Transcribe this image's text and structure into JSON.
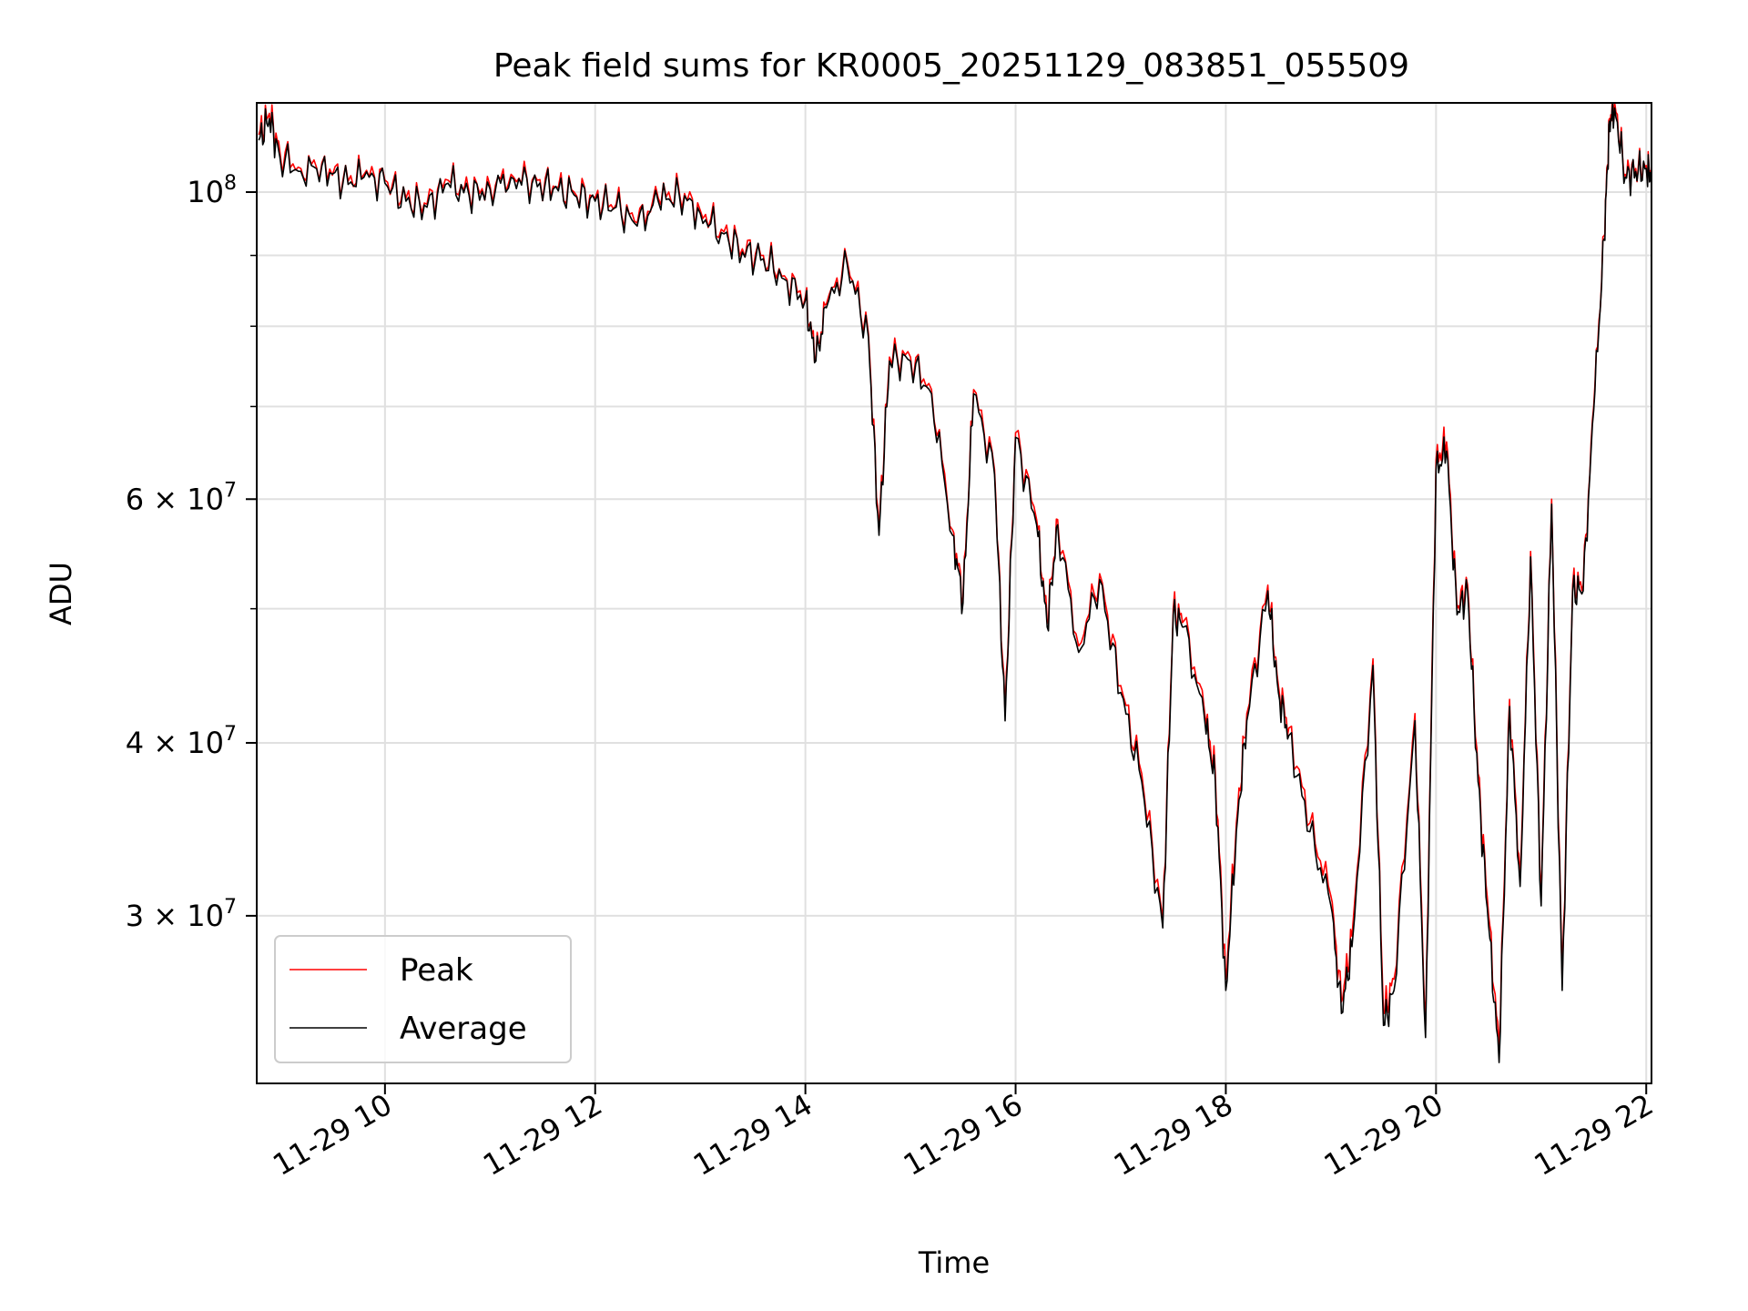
{
  "chart_data": {
    "type": "line",
    "title": "Peak field sums for KR0005_20251129_083851_055509",
    "xlabel": "Time",
    "ylabel": "ADU",
    "yscale": "log",
    "grid": true,
    "legend_position": "lower-left",
    "xlim": [
      8.78,
      22.05
    ],
    "ylim": [
      22700000.0,
      116000000.0
    ],
    "x_ticks": [
      {
        "x": 10,
        "label": "11-29 10"
      },
      {
        "x": 12,
        "label": "11-29 12"
      },
      {
        "x": 14,
        "label": "11-29 14"
      },
      {
        "x": 16,
        "label": "11-29 16"
      },
      {
        "x": 18,
        "label": "11-29 18"
      },
      {
        "x": 20,
        "label": "11-29 20"
      },
      {
        "x": 22,
        "label": "11-29 22"
      }
    ],
    "y_ticks": [
      {
        "y": 30000000,
        "base": "3",
        "exp": "7"
      },
      {
        "y": 40000000,
        "base": "4",
        "exp": "7"
      },
      {
        "y": 60000000,
        "base": "6",
        "exp": "7"
      },
      {
        "y": 100000000,
        "base": "",
        "exp": "8"
      }
    ],
    "y_minor_ticks": [
      50000000,
      70000000,
      80000000,
      90000000
    ],
    "colors": {
      "peak": "#ff0000",
      "average": "#000000",
      "grid": "#e0e0e0"
    },
    "series": [
      {
        "name": "Peak",
        "color": "#ff0000",
        "x": [
          8.8,
          8.9,
          9.0,
          9.2,
          9.4,
          9.6,
          9.8,
          10.0,
          10.2,
          10.4,
          10.6,
          10.8,
          11.0,
          11.2,
          11.4,
          11.6,
          11.8,
          12.0,
          12.2,
          12.4,
          12.6,
          12.8,
          13.0,
          13.2,
          13.4,
          13.6,
          13.8,
          14.0,
          14.1,
          14.2,
          14.4,
          14.6,
          14.7,
          14.8,
          15.0,
          15.2,
          15.4,
          15.5,
          15.6,
          15.8,
          15.9,
          16.0,
          16.2,
          16.3,
          16.4,
          16.6,
          16.8,
          17.0,
          17.2,
          17.4,
          17.5,
          17.6,
          17.8,
          17.9,
          18.0,
          18.1,
          18.2,
          18.4,
          18.5,
          18.6,
          18.8,
          19.0,
          19.1,
          19.2,
          19.4,
          19.5,
          19.6,
          19.8,
          19.9,
          20.0,
          20.1,
          20.2,
          20.3,
          20.4,
          20.5,
          20.6,
          20.7,
          20.8,
          20.9,
          21.0,
          21.1,
          21.2,
          21.3,
          21.4,
          21.5,
          21.6,
          21.65,
          21.7,
          21.8,
          21.9,
          22.0,
          22.05
        ],
        "y": [
          110000000,
          114000000,
          107000000,
          104000000,
          105000000,
          102000000,
          103000000,
          102000000,
          99000000,
          98000000,
          102000000,
          100000000,
          101000000,
          103000000,
          102000000,
          101000000,
          100000000,
          99000000,
          98000000,
          95000000,
          99000000,
          100000000,
          97000000,
          94000000,
          91000000,
          90000000,
          87000000,
          84000000,
          76000000,
          83000000,
          89000000,
          79000000,
          57000000,
          76000000,
          76000000,
          72000000,
          57000000,
          51000000,
          72000000,
          63000000,
          42000000,
          67000000,
          58000000,
          49000000,
          58000000,
          47000000,
          53000000,
          44000000,
          38000000,
          29800000,
          50000000,
          49000000,
          42000000,
          38000000,
          27000000,
          35000000,
          42000000,
          52000000,
          44000000,
          41000000,
          35000000,
          31000000,
          26000000,
          29000000,
          46000000,
          25500000,
          27000000,
          42000000,
          25000000,
          64000000,
          66000000,
          50000000,
          52000000,
          38000000,
          30000000,
          24000000,
          43000000,
          32000000,
          55000000,
          31000000,
          60000000,
          27000000,
          52000000,
          52000000,
          70000000,
          93000000,
          113000000,
          116000000,
          103000000,
          104000000,
          104500000,
          103500000
        ]
      },
      {
        "name": "Average",
        "color": "#000000",
        "x": [
          8.8,
          8.9,
          9.0,
          9.2,
          9.4,
          9.6,
          9.8,
          10.0,
          10.2,
          10.4,
          10.6,
          10.8,
          11.0,
          11.2,
          11.4,
          11.6,
          11.8,
          12.0,
          12.2,
          12.4,
          12.6,
          12.8,
          13.0,
          13.2,
          13.4,
          13.6,
          13.8,
          14.0,
          14.1,
          14.2,
          14.4,
          14.6,
          14.7,
          14.8,
          15.0,
          15.2,
          15.4,
          15.5,
          15.6,
          15.8,
          15.9,
          16.0,
          16.2,
          16.3,
          16.4,
          16.6,
          16.8,
          17.0,
          17.2,
          17.4,
          17.5,
          17.6,
          17.8,
          17.9,
          18.0,
          18.1,
          18.2,
          18.4,
          18.5,
          18.6,
          18.8,
          19.0,
          19.1,
          19.2,
          19.4,
          19.5,
          19.6,
          19.8,
          19.9,
          20.0,
          20.1,
          20.2,
          20.3,
          20.4,
          20.5,
          20.6,
          20.7,
          20.8,
          20.9,
          21.0,
          21.1,
          21.2,
          21.3,
          21.4,
          21.5,
          21.6,
          21.65,
          21.7,
          21.8,
          21.9,
          22.0,
          22.05
        ],
        "y": [
          109000000,
          113000000,
          106000000,
          103500000,
          104500000,
          101500000,
          102500000,
          101500000,
          98500000,
          97500000,
          101500000,
          99500000,
          100500000,
          102500000,
          101500000,
          100500000,
          99500000,
          98500000,
          97500000,
          94500000,
          98500000,
          99500000,
          96500000,
          93500000,
          90500000,
          89500000,
          86500000,
          83500000,
          75500000,
          82500000,
          88500000,
          78500000,
          56500000,
          75500000,
          75500000,
          71500000,
          56500000,
          50500000,
          71500000,
          62500000,
          41500000,
          66500000,
          57500000,
          48500000,
          57500000,
          46500000,
          52500000,
          43500000,
          37500000,
          29400000,
          49500000,
          48500000,
          41500000,
          37500000,
          26500000,
          34500000,
          41500000,
          51500000,
          43500000,
          40500000,
          34500000,
          30500000,
          25500000,
          28500000,
          45500000,
          25000000,
          26500000,
          41500000,
          24500000,
          63000000,
          65000000,
          49500000,
          51500000,
          37500000,
          29500000,
          23500000,
          42500000,
          31500000,
          54500000,
          30500000,
          59500000,
          26500000,
          51500000,
          51500000,
          69500000,
          92500000,
          112500000,
          115000000,
          102500000,
          103500000,
          104000000,
          103000000
        ]
      }
    ]
  }
}
